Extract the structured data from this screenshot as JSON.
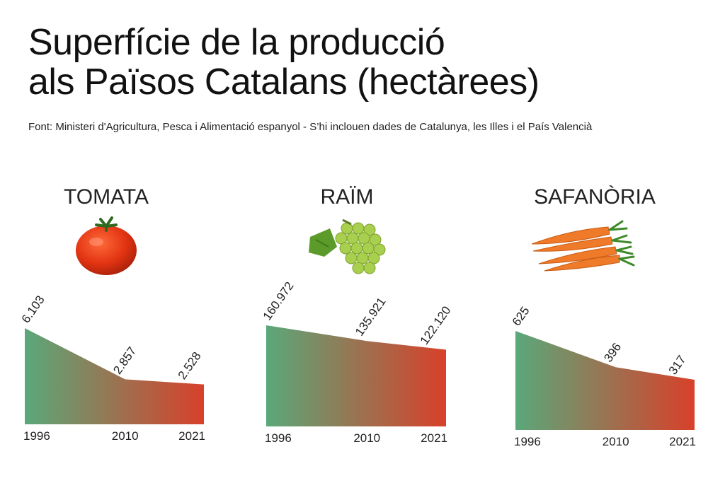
{
  "title_line1": "Superfície de la producció",
  "title_line2": "als Països Catalans (hectàrees)",
  "source": "Font: Ministeri d'Agricultura, Pesca i Alimentació espanyol - S’hi inclouen dades de Catalunya, les Illes i el País Valencià",
  "colors": {
    "start": "#5aa87a",
    "end": "#d8402a"
  },
  "chart_data": [
    {
      "type": "area",
      "title": "TOMATA",
      "icon": "tomato-icon",
      "categories": [
        "1996",
        "2010",
        "2021"
      ],
      "values": [
        6103,
        2857,
        2528
      ],
      "labels": [
        "6.103",
        "2.857",
        "2.528"
      ]
    },
    {
      "type": "area",
      "title": "RAÏM",
      "icon": "grapes-icon",
      "categories": [
        "1996",
        "2010",
        "2021"
      ],
      "values": [
        160972,
        135921,
        122120
      ],
      "labels": [
        "160.972",
        "135.921",
        "122.120"
      ]
    },
    {
      "type": "area",
      "title": "SAFANÒRIA",
      "icon": "carrots-icon",
      "categories": [
        "1996",
        "2010",
        "2021"
      ],
      "values": [
        625,
        396,
        317
      ],
      "labels": [
        "625",
        "396",
        "317"
      ]
    }
  ]
}
